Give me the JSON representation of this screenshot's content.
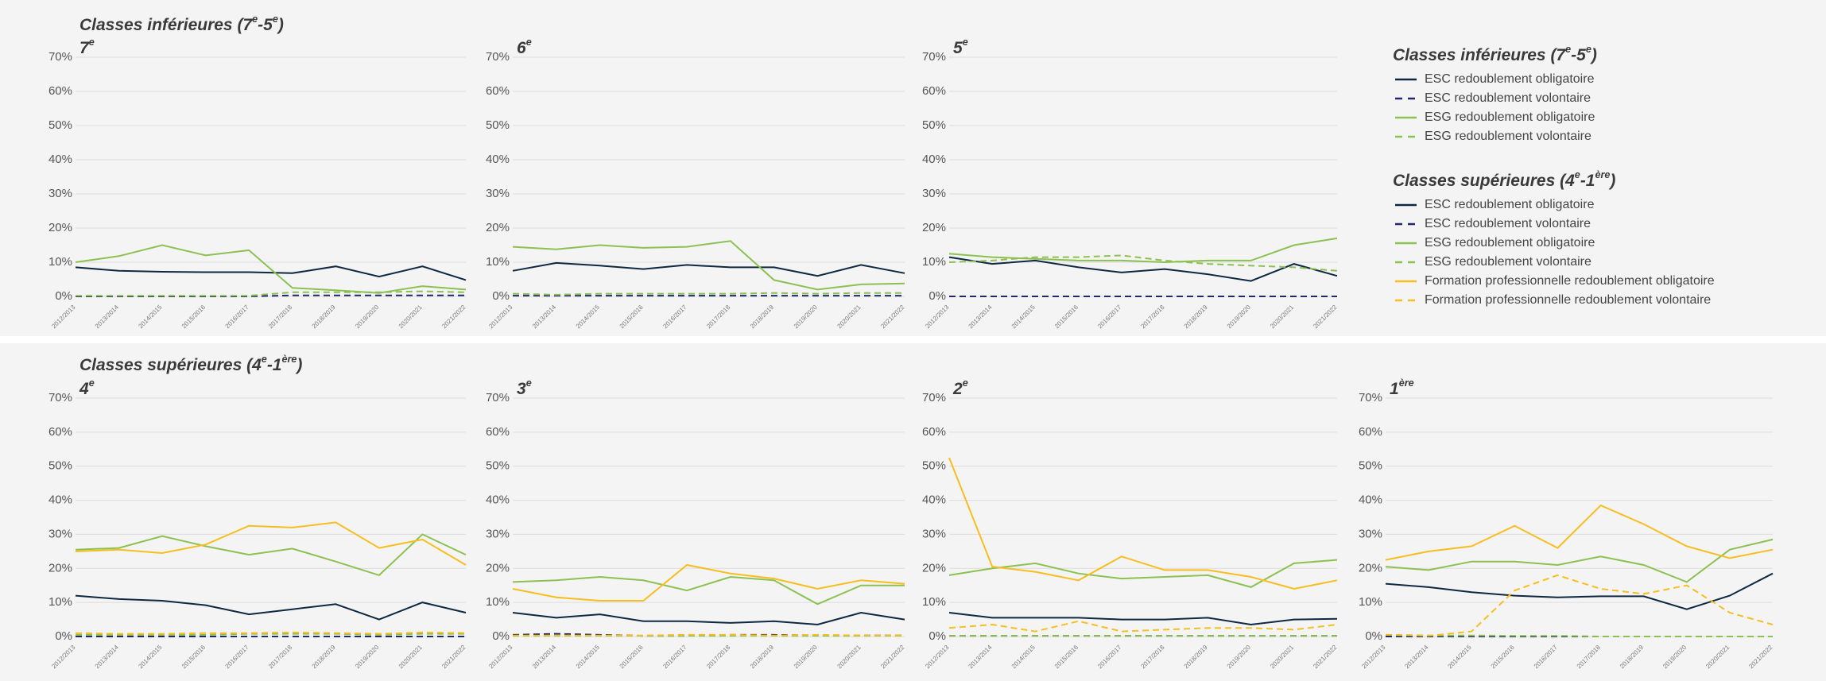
{
  "chart_data": [
    {
      "type": "line",
      "title": [
        "Classes inférieures (7",
        "e",
        "-5",
        "e",
        ")"
      ],
      "categories": [
        "2012/2013",
        "2013/2014",
        "2014/2015",
        "2015/2016",
        "2016/2017",
        "2017/2018",
        "2018/2019",
        "2019/2020",
        "2020/2021",
        "2021/2022"
      ],
      "ylim": [
        0,
        70
      ],
      "yticks": [
        {
          "value": 0,
          "label": "0%"
        },
        {
          "value": 10,
          "label": "10%"
        },
        {
          "value": 20,
          "label": "20%"
        },
        {
          "value": 30,
          "label": "30%"
        },
        {
          "value": 40,
          "label": "40%"
        },
        {
          "value": 50,
          "label": "50%"
        },
        {
          "value": 60,
          "label": "60%"
        },
        {
          "value": 70,
          "label": "70%"
        }
      ],
      "grid": true,
      "series": [
        {
          "name": "ESC redoublement obligatoire",
          "color": "#0e2841",
          "dashed": false
        },
        {
          "name": "ESC redoublement volontaire",
          "color": "#1f2a6b",
          "dashed": true
        },
        {
          "name": "ESG redoublement obligatoire",
          "color": "#8cc152",
          "dashed": false
        },
        {
          "name": "ESG redoublement volontaire",
          "color": "#8cc152",
          "dashed": true
        }
      ],
      "panels": [
        {
          "label": [
            "7",
            "e"
          ],
          "values": [
            [
              8.5,
              7.5,
              7.2,
              7.1,
              7.1,
              6.8,
              8.8,
              5.8,
              8.8,
              4.8
            ],
            [
              0,
              0,
              0,
              0,
              0,
              0.3,
              0.3,
              0.3,
              0.3,
              0.3
            ],
            [
              10,
              11.8,
              15,
              12,
              13.5,
              2.5,
              1.8,
              1,
              3,
              2
            ],
            [
              0.2,
              0.2,
              0.2,
              0.2,
              0.2,
              1.2,
              1.2,
              1.2,
              1.5,
              1.2
            ]
          ]
        },
        {
          "label": [
            "6",
            "e"
          ],
          "values": [
            [
              7.5,
              9.8,
              9,
              8,
              9.2,
              8.5,
              8.5,
              6,
              9.2,
              6.8
            ],
            [
              0.2,
              0.2,
              0.2,
              0.2,
              0.2,
              0.2,
              0.2,
              0.2,
              0.2,
              0.2
            ],
            [
              14.5,
              13.8,
              15,
              14.2,
              14.5,
              16.2,
              4.8,
              2,
              3.5,
              3.8
            ],
            [
              0.8,
              0.5,
              0.8,
              0.8,
              0.8,
              0.8,
              1,
              0.8,
              1,
              1
            ]
          ]
        },
        {
          "label": [
            "5",
            "e"
          ],
          "values": [
            [
              11.5,
              9.5,
              10.5,
              8.5,
              7,
              8,
              6.5,
              4.5,
              9.5,
              6
            ],
            [
              0,
              0,
              0,
              0,
              0,
              0,
              0,
              0,
              0,
              0
            ],
            [
              12.5,
              11.5,
              11,
              10.5,
              10.5,
              10,
              10.5,
              10.5,
              15,
              17
            ],
            [
              10,
              10.5,
              11.5,
              11.5,
              12,
              10.5,
              9.5,
              9,
              8.5,
              7.5
            ]
          ]
        }
      ]
    },
    {
      "type": "line",
      "title": [
        "Classes supérieures (4",
        "e",
        "-1",
        "ère",
        ")"
      ],
      "categories": [
        "2012/2013",
        "2013/2014",
        "2014/2015",
        "2015/2016",
        "2016/2017",
        "2017/2018",
        "2018/2019",
        "2019/2020",
        "2020/2021",
        "2021/2022"
      ],
      "ylim": [
        0,
        70
      ],
      "yticks": [
        {
          "value": 0,
          "label": "0%"
        },
        {
          "value": 10,
          "label": "10%"
        },
        {
          "value": 20,
          "label": "20%"
        },
        {
          "value": 30,
          "label": "30%"
        },
        {
          "value": 40,
          "label": "40%"
        },
        {
          "value": 50,
          "label": "50%"
        },
        {
          "value": 60,
          "label": "60%"
        },
        {
          "value": 70,
          "label": "70%"
        }
      ],
      "grid": true,
      "series": [
        {
          "name": "ESC redoublement obligatoire",
          "color": "#0e2841",
          "dashed": false
        },
        {
          "name": "ESC redoublement volontaire",
          "color": "#1f2a6b",
          "dashed": true
        },
        {
          "name": "ESG redoublement obligatoire",
          "color": "#8cc152",
          "dashed": false
        },
        {
          "name": "ESG redoublement volontaire",
          "color": "#8cc152",
          "dashed": true
        },
        {
          "name": "Formation professionnelle redoublement obligatoire",
          "color": "#f7be1f",
          "dashed": false
        },
        {
          "name": "Formation professionnelle  redoublement volontaire",
          "color": "#f7be1f",
          "dashed": true
        }
      ],
      "panels": [
        {
          "label": [
            "4",
            "e"
          ],
          "values": [
            [
              12,
              11,
              10.5,
              9.2,
              6.5,
              8,
              9.5,
              5,
              10,
              7
            ],
            [
              0,
              0,
              0,
              0,
              0,
              0,
              0,
              0,
              0,
              0
            ],
            [
              25.5,
              26,
              29.5,
              26.5,
              24,
              25.8,
              22,
              18,
              30,
              24
            ],
            [
              0.5,
              0.5,
              0.5,
              0.5,
              0.8,
              0.8,
              0.8,
              0.5,
              0.8,
              0.8
            ],
            [
              25,
              25.5,
              24.5,
              27,
              32.5,
              32,
              33.5,
              26,
              28.5,
              21
            ],
            [
              1,
              0.8,
              0.8,
              1,
              1,
              1.2,
              1,
              0.8,
              1.2,
              1
            ]
          ]
        },
        {
          "label": [
            "3",
            "e"
          ],
          "values": [
            [
              7,
              5.5,
              6.5,
              4.5,
              4.5,
              4,
              4.5,
              3.5,
              7,
              5
            ],
            [
              0.5,
              0.8,
              0.5,
              0.2,
              0.2,
              0.5,
              0.5,
              0.3,
              0.3,
              0.3
            ],
            [
              16,
              16.5,
              17.5,
              16.5,
              13.5,
              17.5,
              16.5,
              9.5,
              15,
              15
            ],
            [
              0.2,
              0.2,
              0.2,
              0.2,
              0.2,
              0.2,
              0.2,
              0.2,
              0.2,
              0.2
            ],
            [
              14,
              11.5,
              10.5,
              10.5,
              21,
              18.5,
              17,
              14,
              16.5,
              15.5
            ],
            [
              0.3,
              0.3,
              0.3,
              0.3,
              0.5,
              0.5,
              0.3,
              0.5,
              0.3,
              0.3
            ]
          ]
        },
        {
          "label": [
            "2",
            "e"
          ],
          "values": [
            [
              7,
              5.5,
              5.5,
              5.5,
              5,
              5,
              5.5,
              3.5,
              5,
              5.2
            ],
            [
              0.2,
              0.2,
              0.2,
              0.2,
              0.2,
              0.2,
              0.2,
              0.2,
              0.2,
              0.2
            ],
            [
              18,
              20,
              21.5,
              18.5,
              17,
              17.5,
              18,
              14.5,
              21.5,
              22.5
            ],
            [
              0.2,
              0.2,
              0.2,
              0.2,
              0.2,
              0.2,
              0.2,
              0.2,
              0.2,
              0.2
            ],
            [
              52.5,
              20.5,
              19,
              16.5,
              23.5,
              19.5,
              19.5,
              17.5,
              14,
              16.5
            ],
            [
              2.5,
              3.5,
              1.5,
              4.5,
              1.5,
              2,
              2.5,
              2.5,
              2,
              3.5
            ]
          ]
        },
        {
          "label": [
            "1",
            "ère"
          ],
          "values": [
            [
              15.5,
              14.5,
              13,
              12,
              11.5,
              11.8,
              11.8,
              8,
              12,
              18.5
            ],
            [
              0,
              0,
              0,
              0,
              0,
              0,
              0,
              0,
              0,
              0
            ],
            [
              20.5,
              19.5,
              22,
              22,
              21,
              23.5,
              21,
              16,
              25.5,
              28.5
            ],
            [
              0.5,
              0.3,
              0.3,
              0.2,
              0.2,
              0,
              0,
              0,
              0,
              0
            ],
            [
              22.5,
              25,
              26.5,
              32.5,
              26,
              38.5,
              33,
              26.5,
              23,
              25.5
            ],
            [
              0.5,
              0.2,
              1.5,
              13.5,
              18,
              14,
              12.5,
              15,
              7,
              3.5
            ]
          ]
        }
      ]
    }
  ]
}
